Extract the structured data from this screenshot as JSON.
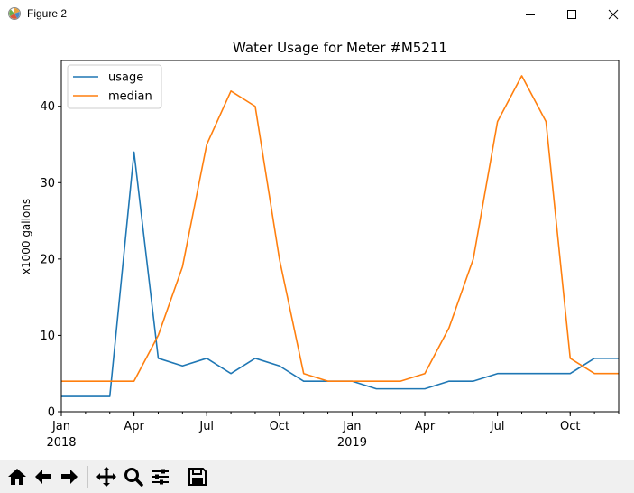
{
  "window": {
    "title": "Figure 2",
    "icons": [
      "app-icon",
      "minimize-icon",
      "maximize-icon",
      "close-icon"
    ]
  },
  "chart_data": {
    "type": "line",
    "title": "Water Usage for Meter #M5211",
    "xlabel": "",
    "ylabel": "x1000 gallons",
    "x": [
      "2018-01",
      "2018-02",
      "2018-03",
      "2018-04",
      "2018-05",
      "2018-06",
      "2018-07",
      "2018-08",
      "2018-09",
      "2018-10",
      "2018-11",
      "2018-12",
      "2019-01",
      "2019-02",
      "2019-03",
      "2019-04",
      "2019-05",
      "2019-06",
      "2019-07",
      "2019-08",
      "2019-09",
      "2019-10",
      "2019-11",
      "2019-12"
    ],
    "series": [
      {
        "name": "usage",
        "color": "#1f77b4",
        "values": [
          2,
          2,
          2,
          34,
          7,
          6,
          7,
          5,
          7,
          6,
          4,
          4,
          4,
          3,
          3,
          3,
          4,
          4,
          5,
          5,
          5,
          5,
          7,
          7
        ]
      },
      {
        "name": "median",
        "color": "#ff7f0e",
        "values": [
          4,
          4,
          4,
          4,
          10,
          19,
          35,
          42,
          40,
          20,
          5,
          4,
          4,
          4,
          4,
          5,
          11,
          20,
          38,
          44,
          38,
          7,
          5,
          5
        ]
      }
    ],
    "xlim": [
      "2018-01",
      "2019-12"
    ],
    "ylim": [
      0,
      46
    ],
    "yticks": [
      0,
      10,
      20,
      30,
      40
    ],
    "xticks": [
      {
        "at": "2018-01",
        "label": "Jan",
        "sublabel": "2018"
      },
      {
        "at": "2018-04",
        "label": "Apr",
        "sublabel": ""
      },
      {
        "at": "2018-07",
        "label": "Jul",
        "sublabel": ""
      },
      {
        "at": "2018-10",
        "label": "Oct",
        "sublabel": ""
      },
      {
        "at": "2019-01",
        "label": "Jan",
        "sublabel": "2019"
      },
      {
        "at": "2019-04",
        "label": "Apr",
        "sublabel": ""
      },
      {
        "at": "2019-07",
        "label": "Jul",
        "sublabel": ""
      },
      {
        "at": "2019-10",
        "label": "Oct",
        "sublabel": ""
      }
    ],
    "grid": false,
    "legend_position": "upper-left"
  },
  "toolbar": {
    "buttons": [
      "home-icon",
      "back-icon",
      "forward-icon",
      "pan-icon",
      "zoom-icon",
      "configure-subplots-icon",
      "save-icon"
    ]
  }
}
